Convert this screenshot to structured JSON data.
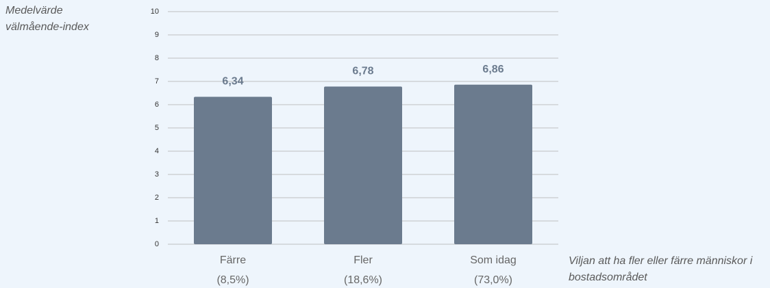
{
  "chart_data": {
    "type": "bar",
    "y_label": "Medelvärde välmående-index",
    "x_label": "Viljan att ha fler eller färre människor i bostadsområdet",
    "categories": [
      [
        "Färre",
        "(8,5%)"
      ],
      [
        "Fler",
        "(18,6%)"
      ],
      [
        "Som idag",
        "(73,0%)"
      ]
    ],
    "values": [
      6.34,
      6.78,
      6.86
    ],
    "value_labels": [
      "6,34",
      "6,78",
      "6,86"
    ],
    "color": "#6b7b8e",
    "ylim": [
      0,
      10
    ],
    "yticks": [
      0,
      1,
      2,
      3,
      4,
      5,
      6,
      7,
      8,
      9,
      10
    ],
    "grid": true
  }
}
